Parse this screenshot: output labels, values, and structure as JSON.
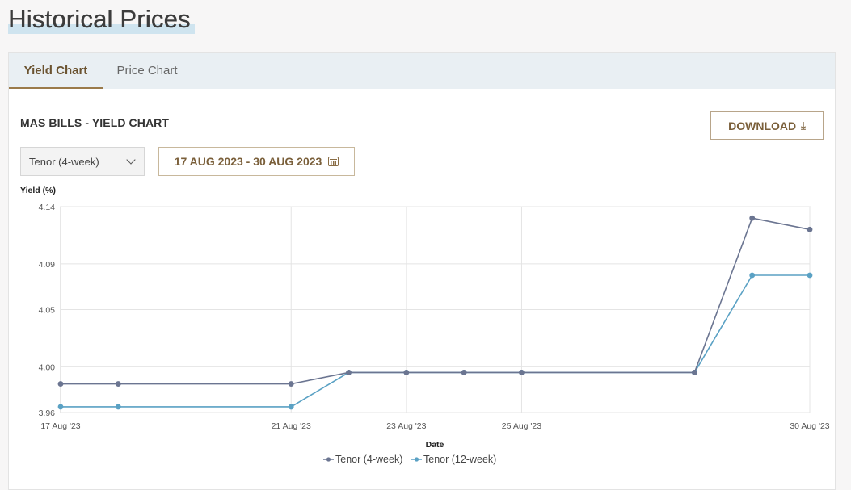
{
  "page": {
    "title": "Historical Prices"
  },
  "tabs": [
    {
      "label": "Yield Chart",
      "active": true
    },
    {
      "label": "Price Chart",
      "active": false
    }
  ],
  "panel": {
    "title": "MAS BILLS - YIELD CHART",
    "download_label": "DOWNLOAD",
    "download_icon": "download-icon",
    "tenor_select": {
      "value": "Tenor (4-week)"
    },
    "date_range": {
      "label": "17 AUG 2023 - 30 AUG 2023",
      "icon": "calendar-icon"
    }
  },
  "colors": {
    "accent": "#7a5f3a",
    "series_4week": "#6b7591",
    "series_12week": "#5aa1c4",
    "tab_bar": "#e9eff3"
  },
  "chart_data": {
    "type": "line",
    "title": "",
    "xlabel": "Date",
    "ylabel": "Yield (%)",
    "ylim": [
      3.96,
      4.14
    ],
    "yticks": [
      "4.14",
      "4.09",
      "4.05",
      "4.00",
      "3.96"
    ],
    "x_ticks": [
      "17 Aug '23",
      "21 Aug '23",
      "23 Aug '23",
      "25 Aug '23",
      "30 Aug '23"
    ],
    "x": [
      "2023-08-17",
      "2023-08-18",
      "2023-08-21",
      "2023-08-22",
      "2023-08-23",
      "2023-08-24",
      "2023-08-25",
      "2023-08-28",
      "2023-08-29",
      "2023-08-30"
    ],
    "grid": true,
    "legend_position": "bottom",
    "series": [
      {
        "name": "Tenor (4-week)",
        "values": [
          3.985,
          3.985,
          3.985,
          3.995,
          3.995,
          3.995,
          3.995,
          3.995,
          4.13,
          4.12
        ]
      },
      {
        "name": "Tenor (12-week)",
        "values": [
          3.965,
          3.965,
          3.965,
          3.995,
          3.995,
          3.995,
          3.995,
          3.995,
          4.08,
          4.08
        ]
      }
    ]
  }
}
